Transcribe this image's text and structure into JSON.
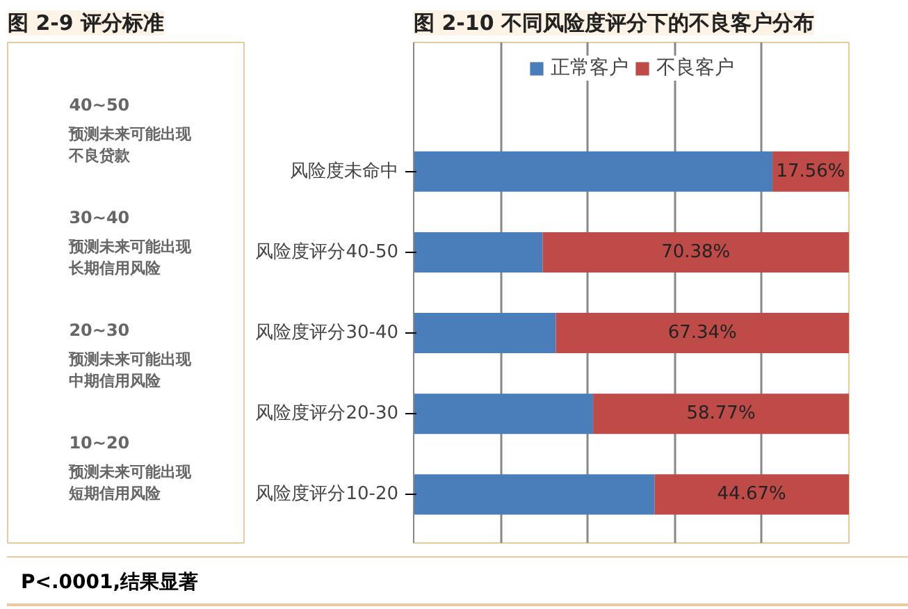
{
  "chart_data": [
    {
      "type": "other",
      "title": "图 2-9 评分标准",
      "annotations": [
        "40~50",
        "预测未来可能出现不良贷款",
        "30~40",
        "预测未来可能出现长期信用风险",
        "20~30",
        "预测未来可能出现中期信用风险",
        "10~20",
        "预测未来可能出现短期信用风险"
      ]
    },
    {
      "type": "bar",
      "title": "图 2-10 不同风险度评分下的不良客户分布",
      "orientation": "horizontal",
      "stacked": true,
      "categories": [
        "风险度未命中",
        "风险度评分40-50",
        "风险度评分30-40",
        "风险度评分20-30",
        "风险度评分10-20"
      ],
      "series": [
        {
          "name": "正常客户",
          "color": "#4a7ebb",
          "values": [
            82.44,
            29.62,
            32.66,
            41.23,
            55.33
          ]
        },
        {
          "name": "不良客户",
          "color": "#be4b48",
          "values": [
            17.56,
            70.38,
            67.34,
            58.77,
            44.67
          ],
          "value_labels": [
            "17.56%",
            "70.38%",
            "67.34%",
            "58.77%",
            "44.67%"
          ]
        }
      ],
      "xlim": [
        0,
        100
      ],
      "xticks": [
        {
          "value": 0,
          "label": null
        },
        {
          "value": 20,
          "label": null
        },
        {
          "value": 40,
          "label": null
        },
        {
          "value": 60,
          "label": null
        },
        {
          "value": 80,
          "label": null
        },
        {
          "value": 100,
          "label": null
        }
      ],
      "grid": "x",
      "legend": "top",
      "tick_labels": "y",
      "annotations": [
        "P<.0001,结果显著"
      ]
    }
  ]
}
